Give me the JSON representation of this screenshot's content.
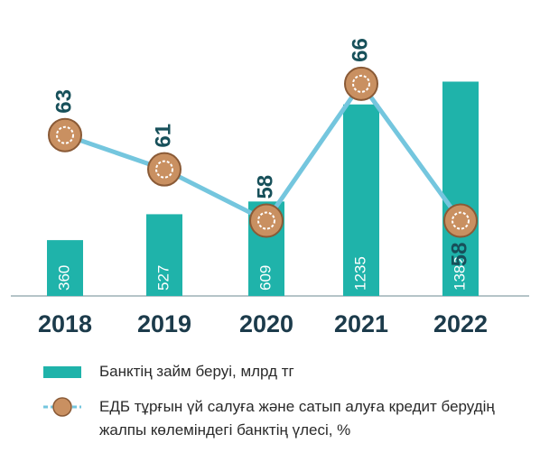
{
  "chart_data": {
    "type": "bar_line",
    "categories": [
      "2018",
      "2019",
      "2020",
      "2021",
      "2022"
    ],
    "series": [
      {
        "name": "Банктің займ беруі, млрд тг",
        "type": "bar",
        "color": "#1fb3aa",
        "values": [
          360,
          527,
          609,
          1235,
          1382
        ]
      },
      {
        "name": "ЕДБ тұрғын үй салуға және сатып алуға кредит берудің жалпы көлеміндегі банктің үлесі, %",
        "type": "line",
        "axis": "y2",
        "color": "#74c6de",
        "values": [
          63,
          61,
          58,
          66,
          58
        ]
      }
    ],
    "ylim": [
      0,
      1600
    ],
    "y2lim": [
      53.6,
      68.1
    ]
  }
}
